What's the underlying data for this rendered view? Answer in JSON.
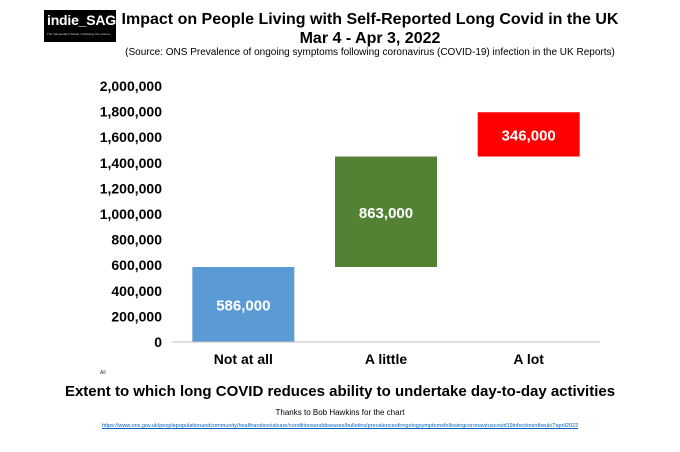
{
  "logo": {
    "text": "indie_SAGE",
    "tagline": "The Independent SAGE • Following the science"
  },
  "header": {
    "title": "Impact on People Living with Self-Reported Long Covid in the UK",
    "subtitle": "Mar 4 - Apr 3, 2022",
    "source": "(Source: ONS Prevalence of ongoing symptoms following coronavirus (COVID-19) infection in the UK Reports)"
  },
  "footer": {
    "all_note": "All",
    "thanks": "Thanks to Bob Hawkins for the chart",
    "url": "https://www.ons.gov.uk/peoplepopulationandcommunity/healthandsocialcare/conditionsanddiseases/bulletins/prevalenceofongoingsymptomsfollowingcoronaviruscovid19infectionintheuk/7april2022"
  },
  "colors": {
    "not_at_all": "#5b9bd5",
    "a_little": "#548235",
    "a_lot": "#ff0000"
  },
  "chart_data": {
    "type": "bar",
    "subtype": "waterfall",
    "categories": [
      "Not at all",
      "A little",
      "A lot"
    ],
    "values": [
      586000,
      863000,
      346000
    ],
    "bases": [
      0,
      586000,
      1449000
    ],
    "data_labels": [
      "586,000",
      "863,000",
      "346,000"
    ],
    "xlabel": "Extent to which long COVID reduces ability to undertake day-to-day activities",
    "ylabel": "",
    "ylim": [
      0,
      2000000
    ],
    "yticks": [
      0,
      200000,
      400000,
      600000,
      800000,
      1000000,
      1200000,
      1400000,
      1600000,
      1800000,
      2000000
    ],
    "ytick_labels": [
      "0",
      "200,000",
      "400,000",
      "600,000",
      "800,000",
      "1,000,000",
      "1,200,000",
      "1,400,000",
      "1,600,000",
      "1,800,000",
      "2,000,000"
    ],
    "grid": false,
    "legend": "none"
  }
}
